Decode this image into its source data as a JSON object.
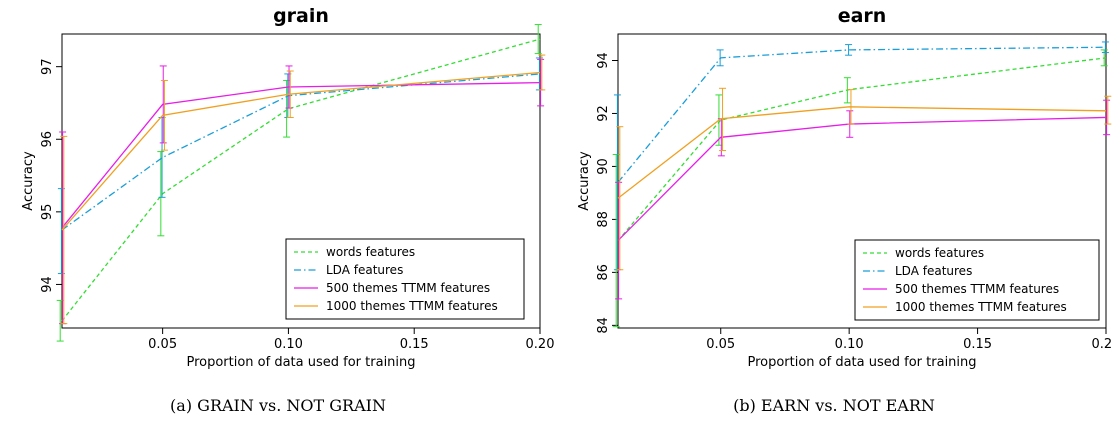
{
  "colors": {
    "words features": "#33dd33",
    "LDA features": "#1a9ed8",
    "500 themes TTMM features": "#e61ee6",
    "1000 themes TTMM features": "#f0a020"
  },
  "captions": [
    "(a) GRAIN vs. NOT GRAIN",
    "(b) EARN vs. NOT EARN"
  ],
  "chart_data": [
    {
      "type": "line",
      "title": "grain",
      "xlabel": "Proportion of data used for training",
      "ylabel": "Accuracy",
      "xlim": [
        0.01,
        0.2
      ],
      "ylim": [
        93.4,
        97.45
      ],
      "xticks": [
        0.05,
        0.1,
        0.15,
        0.2
      ],
      "xtick_labels": [
        "0.05",
        "0.10",
        "0.15",
        "0.20"
      ],
      "yticks": [
        94,
        95,
        96,
        97
      ],
      "ytick_labels": [
        "94",
        "95",
        "96",
        "97"
      ],
      "legend": "bottom-right",
      "grid": false,
      "x": [
        0.01,
        0.05,
        0.1,
        0.2
      ],
      "series": [
        {
          "name": "words features",
          "style": "dashed",
          "values": [
            93.5,
            95.25,
            96.42,
            97.38
          ],
          "err_low": [
            93.22,
            94.67,
            96.03,
            97.18
          ],
          "err_high": [
            93.78,
            95.83,
            96.81,
            97.58
          ]
        },
        {
          "name": "LDA features",
          "style": "dashdot",
          "values": [
            94.75,
            95.75,
            96.6,
            96.9
          ],
          "err_low": [
            94.15,
            95.2,
            96.3,
            96.68
          ],
          "err_high": [
            95.32,
            96.3,
            96.9,
            97.12
          ]
        },
        {
          "name": "500 themes TTMM features",
          "style": "solid",
          "values": [
            94.78,
            96.48,
            96.72,
            96.78
          ],
          "err_low": [
            93.46,
            95.95,
            96.43,
            96.46
          ],
          "err_high": [
            96.1,
            97.01,
            97.01,
            97.1
          ]
        },
        {
          "name": "1000 themes TTMM features",
          "style": "solid",
          "values": [
            94.75,
            96.33,
            96.62,
            96.92
          ],
          "err_low": [
            93.46,
            95.85,
            96.3,
            96.68
          ],
          "err_high": [
            96.04,
            96.81,
            96.94,
            97.16
          ]
        }
      ]
    },
    {
      "type": "line",
      "title": "earn",
      "xlabel": "Proportion of data used for training",
      "ylabel": "Accuracy",
      "xlim": [
        0.01,
        0.2
      ],
      "ylim": [
        83.9,
        95.0
      ],
      "xticks": [
        0.05,
        0.1,
        0.15,
        0.2
      ],
      "xtick_labels": [
        "0.05",
        "0.10",
        "0.15",
        "0.20"
      ],
      "yticks": [
        84,
        86,
        88,
        90,
        92,
        94
      ],
      "ytick_labels": [
        "84",
        "86",
        "88",
        "90",
        "92",
        "94"
      ],
      "legend": "bottom-right",
      "grid": false,
      "x": [
        0.01,
        0.05,
        0.1,
        0.2
      ],
      "series": [
        {
          "name": "words features",
          "style": "dashed",
          "values": [
            87.2,
            91.75,
            92.9,
            94.1
          ],
          "err_low": [
            83.95,
            90.8,
            92.4,
            93.8
          ],
          "err_high": [
            90.45,
            92.7,
            93.35,
            94.4
          ]
        },
        {
          "name": "LDA features",
          "style": "dashdot",
          "values": [
            89.4,
            94.1,
            94.4,
            94.5
          ],
          "err_low": [
            86.1,
            93.8,
            94.2,
            94.3
          ],
          "err_high": [
            92.7,
            94.4,
            94.6,
            94.7
          ]
        },
        {
          "name": "500 themes TTMM features",
          "style": "solid",
          "values": [
            87.2,
            91.1,
            91.6,
            91.85
          ],
          "err_low": [
            85.0,
            90.4,
            91.1,
            91.2
          ],
          "err_high": [
            89.4,
            91.8,
            92.1,
            92.5
          ]
        },
        {
          "name": "1000 themes TTMM features",
          "style": "solid",
          "values": [
            88.8,
            91.8,
            92.25,
            92.1
          ],
          "err_low": [
            86.1,
            90.6,
            91.6,
            91.6
          ],
          "err_high": [
            91.5,
            92.95,
            92.9,
            92.65
          ]
        }
      ]
    }
  ]
}
